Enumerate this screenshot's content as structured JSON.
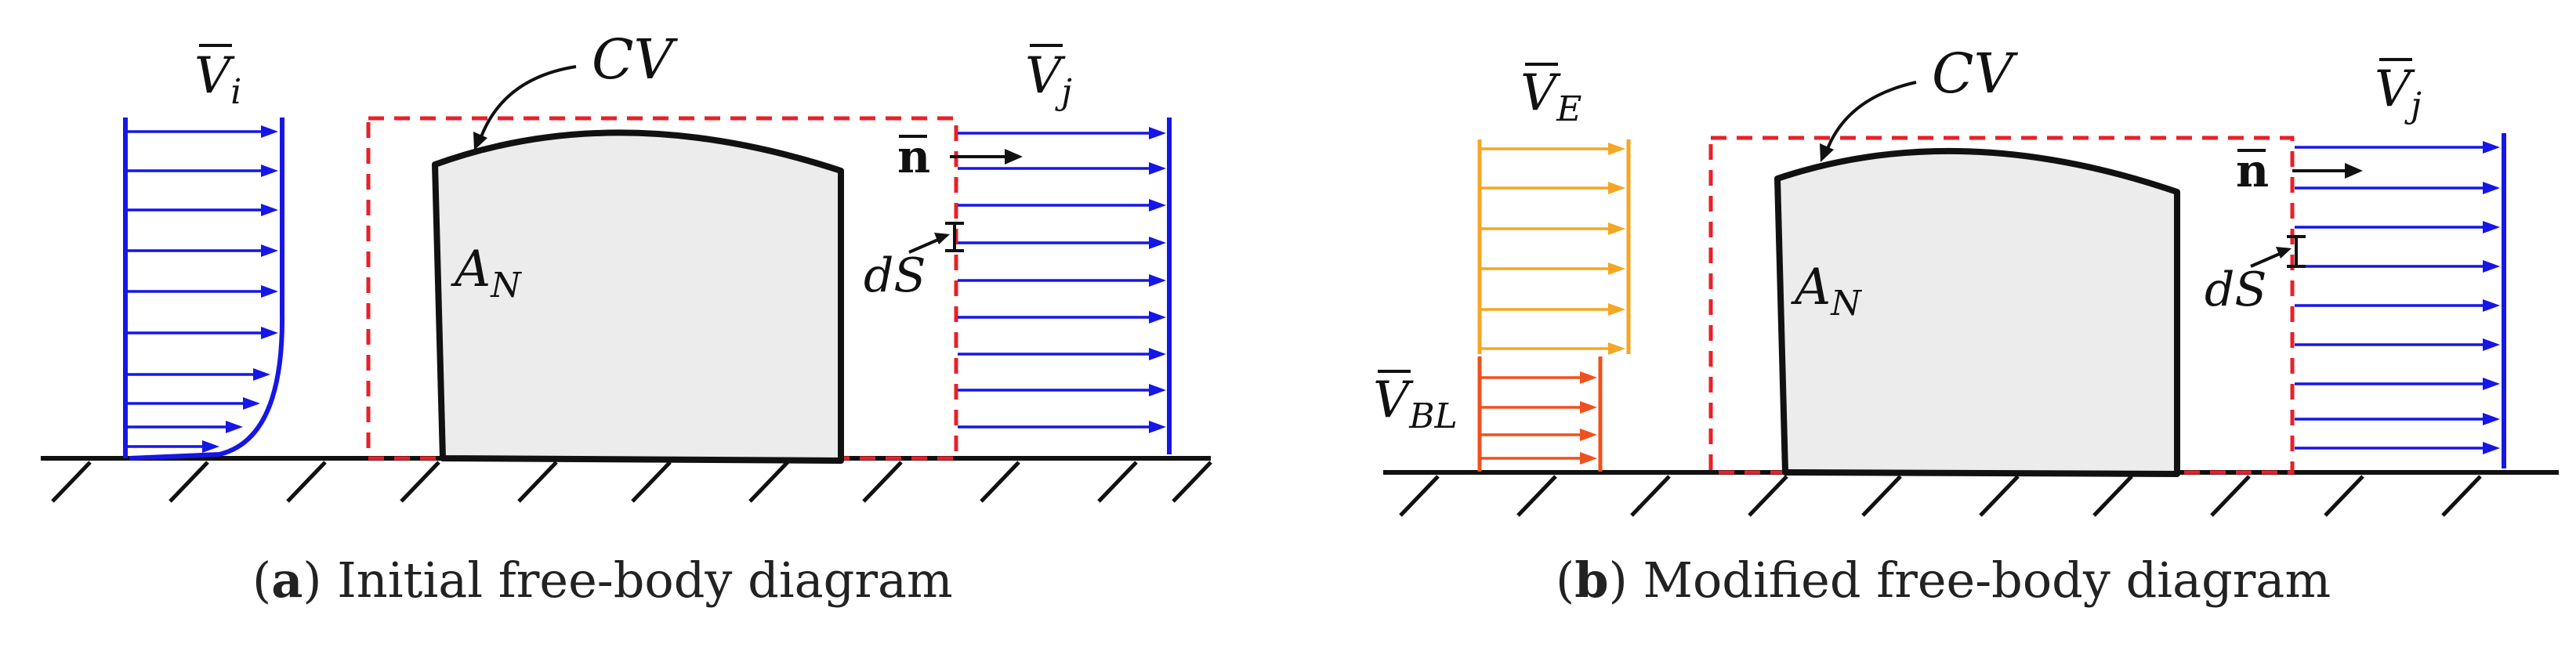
{
  "colors": {
    "body_fill": "#ececec",
    "outline": "#111111",
    "control_volume": "#e8202a",
    "jet_profile": "#1616e6",
    "edge_profile": "#f5a623",
    "boundary_layer": "#f0501e"
  },
  "panel_a": {
    "caption_letter": "a",
    "caption_text": " Initial free-body diagram",
    "labels": {
      "inlet_velocity": {
        "main": "V",
        "sub": "i"
      },
      "control_volume": "CV",
      "area": {
        "main": "A",
        "sub": "N"
      },
      "normal": "n",
      "surface_element": "dS",
      "jet_velocity": {
        "main": "V",
        "sub": "j"
      }
    }
  },
  "panel_b": {
    "caption_letter": "b",
    "caption_text": " Modified free-body diagram",
    "labels": {
      "edge_velocity": {
        "main": "V",
        "sub": "E"
      },
      "boundary_layer_velocity": {
        "main": "V",
        "sub": "BL"
      },
      "control_volume": "CV",
      "area": {
        "main": "A",
        "sub": "N"
      },
      "normal": "n",
      "surface_element": "dS",
      "jet_velocity": {
        "main": "V",
        "sub": "j"
      }
    }
  }
}
